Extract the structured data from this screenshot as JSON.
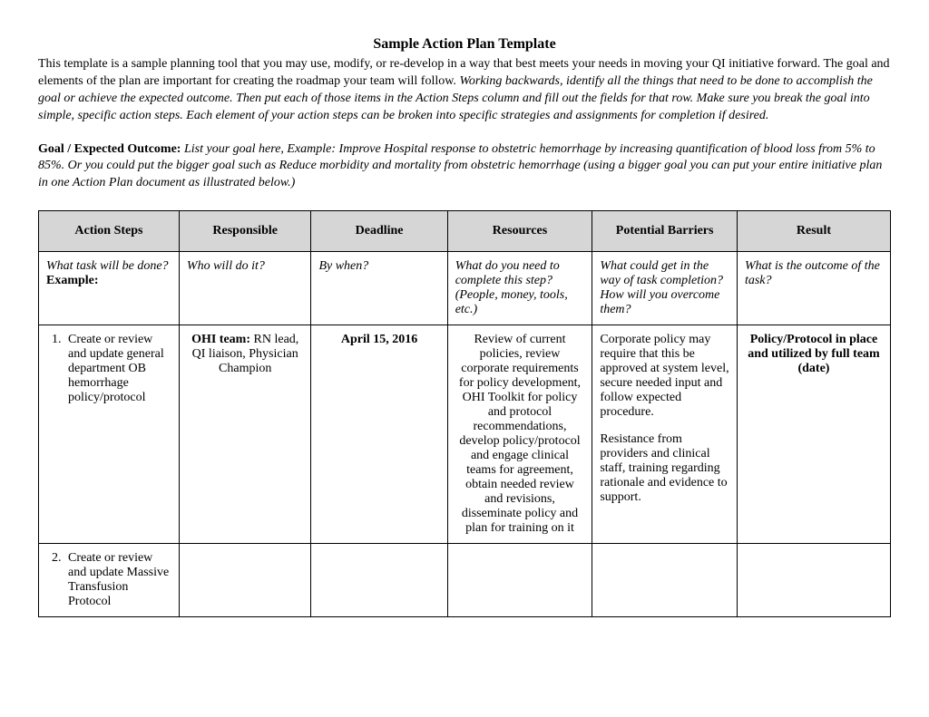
{
  "title": "Sample Action Plan Template",
  "intro_plain": "This template is a sample planning tool that you may use, modify, or re-develop in a way that best meets your needs in moving your QI initiative forward.  The goal and elements of the plan are important for creating the roadmap your team will follow.  ",
  "intro_italic": "Working backwards, identify all the things that need to be done to accomplish the goal or achieve the expected outcome. Then put each of those items in the Action Steps column and fill out the fields for that row. Make sure you break the goal into simple, specific action steps. Each element of your action steps can be broken into specific strategies and assignments for completion if desired.",
  "goal_label": "Goal / Expected Outcome:",
  "goal_body": " List your goal here, Example:  Improve Hospital response to obstetric hemorrhage by increasing quantification of blood loss from 5% to 85%.  Or you could put the bigger goal such as Reduce morbidity and mortality from obstetric hemorrhage (using a bigger goal you can put your entire initiative plan in one Action Plan document as illustrated below.)",
  "columns": {
    "step": "Action Steps",
    "responsible": "Responsible",
    "deadline": "Deadline",
    "resources": "Resources",
    "barriers": "Potential Barriers",
    "result": "Result"
  },
  "desc": {
    "step_q": "What task will be done?",
    "step_ex": "Example:",
    "responsible": "Who will do it?",
    "deadline": "By when?",
    "resources": "What do you need to complete this step? (People, money, tools, etc.)",
    "barriers": "What could get in the way of task completion? How will you overcome them?",
    "result": "What is the outcome of the task?"
  },
  "row1": {
    "step": "Create or review and update general department OB hemorrhage policy/protocol",
    "responsible_bold": "OHI team:",
    "responsible_rest": "  RN lead, QI liaison, Physician Champion",
    "deadline": "April 15, 2016",
    "resources": "Review of current policies, review corporate requirements for policy development, OHI Toolkit for policy and protocol recommendations, develop policy/protocol and engage clinical teams for agreement, obtain needed review and revisions, disseminate policy and plan for training on it",
    "barriers_p1": "Corporate policy may require that this be approved at system level, secure needed input and follow expected procedure.",
    "barriers_p2": "Resistance from providers and clinical staff, training regarding rationale and evidence to support.",
    "result": "Policy/Protocol in place and utilized by full team (date)"
  },
  "row2": {
    "step": "Create or review and update Massive Transfusion Protocol"
  }
}
